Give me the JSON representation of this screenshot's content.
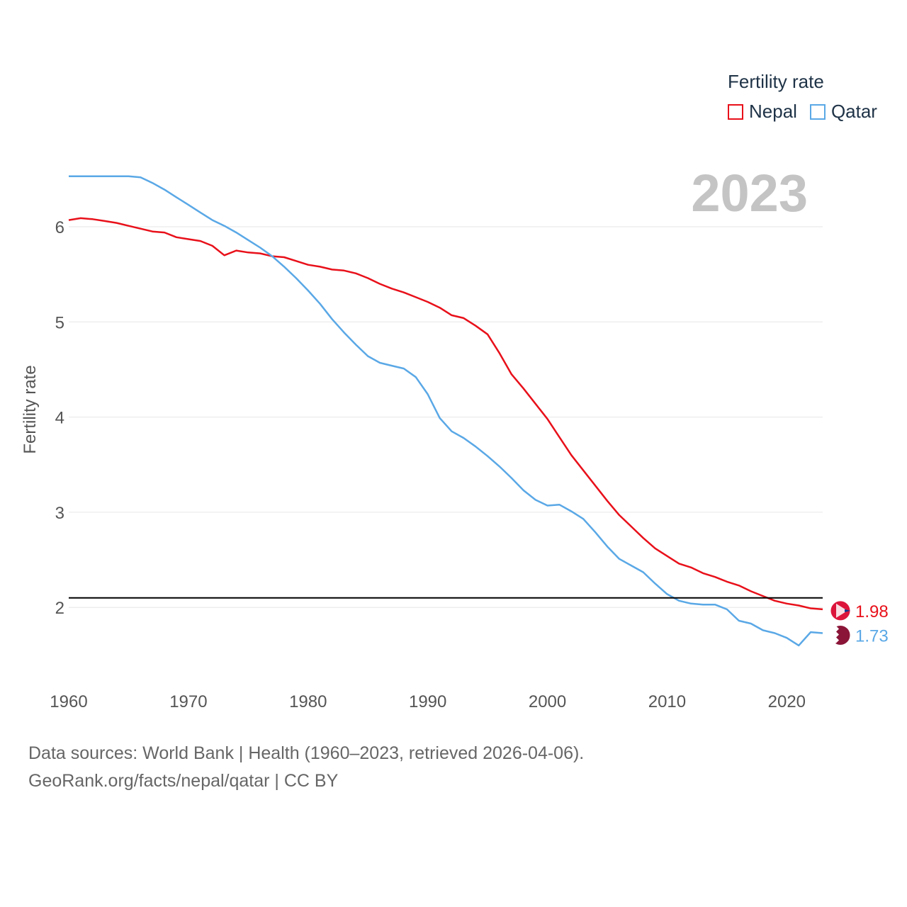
{
  "chart_data": {
    "type": "line",
    "title": "",
    "year_label": "2023",
    "ylabel": "Fertility rate",
    "xlabel": "",
    "xlim": [
      1960,
      2023
    ],
    "ylim": [
      1.45,
      6.7
    ],
    "x_ticks": [
      1960,
      1970,
      1980,
      1990,
      2000,
      2010,
      2020
    ],
    "y_ticks": [
      2,
      3,
      4,
      5,
      6
    ],
    "reference_line": 2.1,
    "legend_title": "Fertility rate",
    "legend_position": "top-right",
    "grid": true,
    "x": [
      1960,
      1961,
      1962,
      1963,
      1964,
      1965,
      1966,
      1967,
      1968,
      1969,
      1970,
      1971,
      1972,
      1973,
      1974,
      1975,
      1976,
      1977,
      1978,
      1979,
      1980,
      1981,
      1982,
      1983,
      1984,
      1985,
      1986,
      1987,
      1988,
      1989,
      1990,
      1991,
      1992,
      1993,
      1994,
      1995,
      1996,
      1997,
      1998,
      1999,
      2000,
      2001,
      2002,
      2003,
      2004,
      2005,
      2006,
      2007,
      2008,
      2009,
      2010,
      2011,
      2012,
      2013,
      2014,
      2015,
      2016,
      2017,
      2018,
      2019,
      2020,
      2021,
      2022,
      2023
    ],
    "series": [
      {
        "name": "Nepal",
        "color": "#e8101a",
        "end_label": "1.98",
        "values": [
          6.07,
          6.09,
          6.08,
          6.06,
          6.04,
          6.01,
          5.98,
          5.95,
          5.94,
          5.89,
          5.87,
          5.85,
          5.8,
          5.7,
          5.75,
          5.73,
          5.72,
          5.69,
          5.68,
          5.64,
          5.6,
          5.58,
          5.55,
          5.54,
          5.51,
          5.46,
          5.4,
          5.35,
          5.31,
          5.26,
          5.21,
          5.15,
          5.07,
          5.04,
          4.96,
          4.87,
          4.67,
          4.45,
          4.3,
          4.14,
          3.98,
          3.79,
          3.6,
          3.44,
          3.28,
          3.12,
          2.97,
          2.85,
          2.73,
          2.62,
          2.54,
          2.46,
          2.42,
          2.36,
          2.32,
          2.27,
          2.23,
          2.17,
          2.12,
          2.07,
          2.04,
          2.02,
          1.99,
          1.98
        ]
      },
      {
        "name": "Qatar",
        "color": "#5aa8e6",
        "end_label": "1.73",
        "values": [
          6.53,
          6.53,
          6.53,
          6.53,
          6.53,
          6.53,
          6.52,
          6.46,
          6.39,
          6.31,
          6.23,
          6.15,
          6.07,
          6.01,
          5.94,
          5.86,
          5.78,
          5.69,
          5.58,
          5.46,
          5.33,
          5.19,
          5.03,
          4.89,
          4.76,
          4.64,
          4.57,
          4.54,
          4.51,
          4.42,
          4.24,
          3.99,
          3.85,
          3.78,
          3.69,
          3.59,
          3.48,
          3.36,
          3.23,
          3.13,
          3.07,
          3.08,
          3.01,
          2.93,
          2.79,
          2.64,
          2.51,
          2.44,
          2.37,
          2.25,
          2.14,
          2.07,
          2.04,
          2.03,
          2.03,
          1.98,
          1.86,
          1.83,
          1.76,
          1.73,
          1.68,
          1.6,
          1.74,
          1.73
        ]
      }
    ]
  },
  "source": {
    "line1": "Data sources: World Bank | Health (1960–2023, retrieved 2026-04-06).",
    "line2": "GeoRank.org/facts/nepal/qatar | CC BY"
  }
}
